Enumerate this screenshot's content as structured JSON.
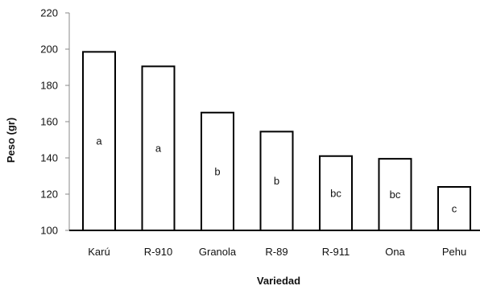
{
  "chart_data": {
    "type": "bar",
    "title": "",
    "xlabel": "Variedad",
    "ylabel": "Peso (gr)",
    "ylim": [
      100,
      220
    ],
    "yticks": [
      100,
      120,
      140,
      160,
      180,
      200,
      220
    ],
    "grid": false,
    "categories": [
      "Karú",
      "R-910",
      "Granola",
      "R-89",
      "R-911",
      "Ona",
      "Pehu"
    ],
    "values": [
      198.5,
      190.5,
      165,
      154.5,
      141,
      139.5,
      124
    ],
    "bar_labels": [
      "a",
      "a",
      "b",
      "b",
      "bc",
      "bc",
      "c"
    ],
    "bar_fill": "#ffffff",
    "bar_stroke": "#000000"
  }
}
